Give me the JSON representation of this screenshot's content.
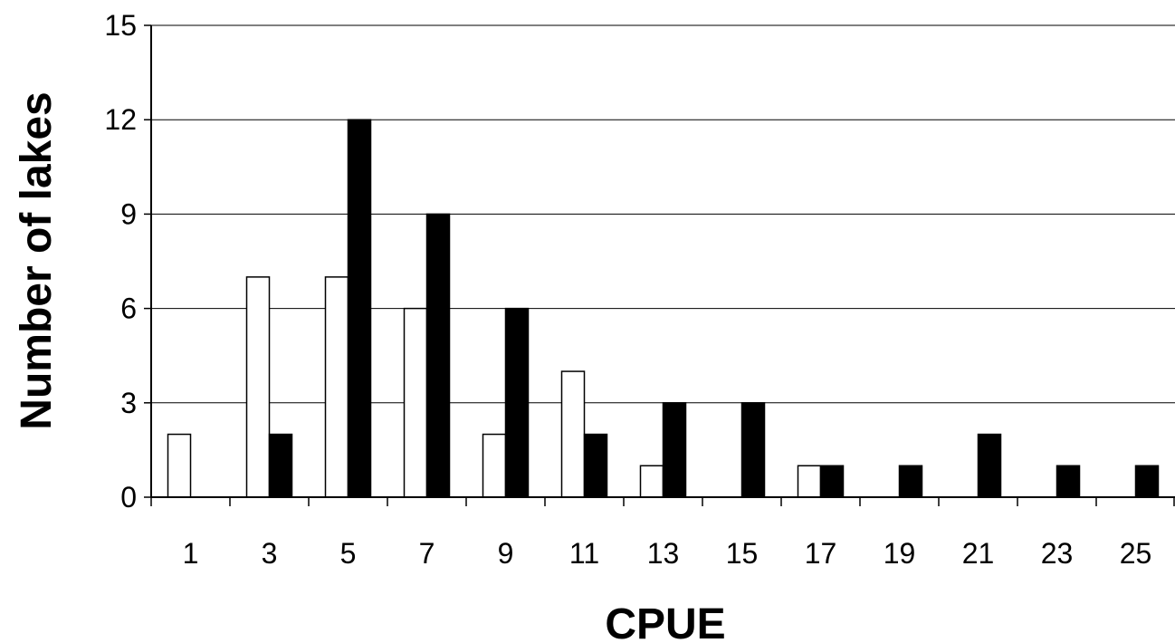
{
  "chart_data": {
    "type": "bar",
    "title": "",
    "xlabel": "CPUE",
    "ylabel": "Number of lakes",
    "categories": [
      "1",
      "3",
      "5",
      "7",
      "9",
      "11",
      "13",
      "15",
      "17",
      "19",
      "21",
      "23",
      "25"
    ],
    "ylim": [
      0,
      15
    ],
    "yticks": [
      0,
      3,
      6,
      9,
      12,
      15
    ],
    "grid": true,
    "legend": "none",
    "series": [
      {
        "color": "#ffffff",
        "stroke": "#000000",
        "values": [
          2,
          7,
          7,
          6,
          2,
          4,
          1,
          0,
          1,
          0,
          0,
          0,
          0
        ]
      },
      {
        "color": "#000000",
        "stroke": "#000000",
        "values": [
          0,
          2,
          12,
          9,
          6,
          2,
          3,
          3,
          1,
          1,
          2,
          1,
          1
        ]
      }
    ]
  }
}
